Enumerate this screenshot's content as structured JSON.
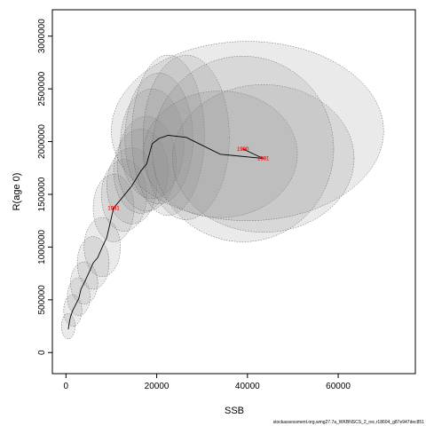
{
  "chart_data": {
    "type": "scatter",
    "xlabel": "SSB",
    "ylabel": "R(age 0)",
    "xlim": [
      -3000,
      77000
    ],
    "ylim": [
      -200000,
      3250000
    ],
    "x_ticks": [
      "0",
      "20000",
      "40000",
      "60000"
    ],
    "x_tick_values": [
      0,
      20000,
      40000,
      60000
    ],
    "y_ticks": [
      "0",
      "500000",
      "1000000",
      "1500000",
      "2000000",
      "2500000",
      "3000000"
    ],
    "y_tick_values": [
      0,
      500000,
      1000000,
      1500000,
      2000000,
      2500000,
      3000000
    ],
    "grid": false,
    "trajectory": [
      {
        "label": "",
        "x": 500,
        "y": 220000
      },
      {
        "label": "",
        "x": 800,
        "y": 300000
      },
      {
        "label": "",
        "x": 1000,
        "y": 340000
      },
      {
        "label": "",
        "x": 1500,
        "y": 400000
      },
      {
        "label": "",
        "x": 2200,
        "y": 460000
      },
      {
        "label": "",
        "x": 2800,
        "y": 510000
      },
      {
        "label": "",
        "x": 3300,
        "y": 600000
      },
      {
        "label": "",
        "x": 4000,
        "y": 660000
      },
      {
        "label": "",
        "x": 5200,
        "y": 770000
      },
      {
        "label": "",
        "x": 6000,
        "y": 850000
      },
      {
        "label": "",
        "x": 7000,
        "y": 900000
      },
      {
        "label": "",
        "x": 8000,
        "y": 1000000
      },
      {
        "label": "",
        "x": 9000,
        "y": 1090000
      },
      {
        "label": "1991",
        "x": 10500,
        "y": 1370000
      },
      {
        "label": "",
        "x": 12800,
        "y": 1490000
      },
      {
        "label": "",
        "x": 14500,
        "y": 1580000
      },
      {
        "label": "",
        "x": 16500,
        "y": 1720000
      },
      {
        "label": "",
        "x": 17800,
        "y": 1790000
      },
      {
        "label": "",
        "x": 19000,
        "y": 1980000
      },
      {
        "label": "",
        "x": 20500,
        "y": 2030000
      },
      {
        "label": "",
        "x": 22500,
        "y": 2060000
      },
      {
        "label": "",
        "x": 26500,
        "y": 2040000
      },
      {
        "label": "",
        "x": 34000,
        "y": 1880000
      },
      {
        "label": "1981",
        "x": 43500,
        "y": 1840000
      },
      {
        "label": "1980",
        "x": 39000,
        "y": 1930000
      }
    ],
    "red_labels": [
      {
        "label": "1991",
        "x": 10500,
        "y": 1370000
      },
      {
        "label": "1980",
        "x": 39000,
        "y": 1930000
      },
      {
        "label": "1981",
        "x": 43500,
        "y": 1840000
      }
    ],
    "uncertainty_ellipses": [
      {
        "x": 500,
        "y": 250000,
        "rx": 1500,
        "ry": 120000
      },
      {
        "x": 1500,
        "y": 400000,
        "rx": 2000,
        "ry": 150000
      },
      {
        "x": 2800,
        "y": 530000,
        "rx": 2500,
        "ry": 180000
      },
      {
        "x": 4000,
        "y": 660000,
        "rx": 3000,
        "ry": 200000
      },
      {
        "x": 6000,
        "y": 850000,
        "rx": 3500,
        "ry": 250000
      },
      {
        "x": 8000,
        "y": 1000000,
        "rx": 4000,
        "ry": 280000
      },
      {
        "x": 10500,
        "y": 1370000,
        "rx": 4500,
        "ry": 320000
      },
      {
        "x": 12800,
        "y": 1490000,
        "rx": 5000,
        "ry": 340000
      },
      {
        "x": 14500,
        "y": 1580000,
        "rx": 5500,
        "ry": 360000
      },
      {
        "x": 16500,
        "y": 1720000,
        "rx": 6000,
        "ry": 400000
      },
      {
        "x": 17800,
        "y": 1790000,
        "rx": 6500,
        "ry": 450000
      },
      {
        "x": 19000,
        "y": 1980000,
        "rx": 7000,
        "ry": 520000
      },
      {
        "x": 20500,
        "y": 2030000,
        "rx": 7500,
        "ry": 620000
      },
      {
        "x": 22500,
        "y": 2060000,
        "rx": 8000,
        "ry": 760000
      },
      {
        "x": 26500,
        "y": 2040000,
        "rx": 9500,
        "ry": 780000
      },
      {
        "x": 34000,
        "y": 1880000,
        "rx": 17000,
        "ry": 600000
      },
      {
        "x": 43500,
        "y": 1840000,
        "rx": 20000,
        "ry": 700000
      },
      {
        "x": 39000,
        "y": 1930000,
        "rx": 20000,
        "ry": 880000
      },
      {
        "x": 40000,
        "y": 2100000,
        "rx": 30000,
        "ry": 850000
      }
    ]
  },
  "footer": "stockassessment.org,wmg27.7a_WKBNSCS_2_rec,r18604_g87e947dec851"
}
